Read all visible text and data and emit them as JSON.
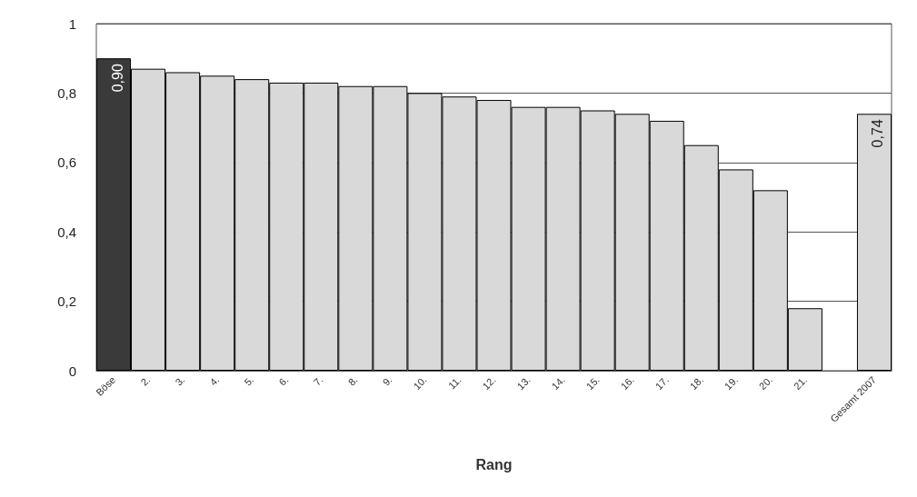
{
  "chart_data": {
    "type": "bar",
    "xlabel": "Rang",
    "categories": [
      "Böse",
      "2.",
      "3.",
      "4.",
      "5.",
      "6.",
      "7.",
      "8.",
      "9.",
      "10.",
      "11.",
      "12.",
      "13.",
      "14.",
      "15.",
      "16.",
      "17.",
      "18.",
      "19.",
      "20.",
      "21.",
      null,
      "Gesamt 2007"
    ],
    "values": [
      0.9,
      0.87,
      0.86,
      0.85,
      0.84,
      0.83,
      0.83,
      0.82,
      0.82,
      0.8,
      0.79,
      0.78,
      0.76,
      0.76,
      0.75,
      0.74,
      0.72,
      0.65,
      0.58,
      0.52,
      0.18,
      null,
      0.74
    ],
    "colors": [
      "#3a3a3a",
      "#d9d9d9",
      "#d9d9d9",
      "#d9d9d9",
      "#d9d9d9",
      "#d9d9d9",
      "#d9d9d9",
      "#d9d9d9",
      "#d9d9d9",
      "#d9d9d9",
      "#d9d9d9",
      "#d9d9d9",
      "#d9d9d9",
      "#d9d9d9",
      "#d9d9d9",
      "#d9d9d9",
      "#d9d9d9",
      "#d9d9d9",
      "#d9d9d9",
      "#d9d9d9",
      "#d9d9d9",
      "#d9d9d9",
      "#d9d9d9"
    ],
    "value_labels": [
      "0,90",
      null,
      null,
      null,
      null,
      null,
      null,
      null,
      null,
      null,
      null,
      null,
      null,
      null,
      null,
      null,
      null,
      null,
      null,
      null,
      null,
      null,
      "0,74"
    ],
    "ylim": [
      0,
      1
    ],
    "yticks": [
      {
        "value": 0,
        "label": "0"
      },
      {
        "value": 0.2,
        "label": "0,2"
      },
      {
        "value": 0.4,
        "label": "0,4"
      },
      {
        "value": 0.6,
        "label": "0,6"
      },
      {
        "value": 0.8,
        "label": "0,8"
      },
      {
        "value": 1,
        "label": "1"
      }
    ],
    "grid": "y"
  }
}
